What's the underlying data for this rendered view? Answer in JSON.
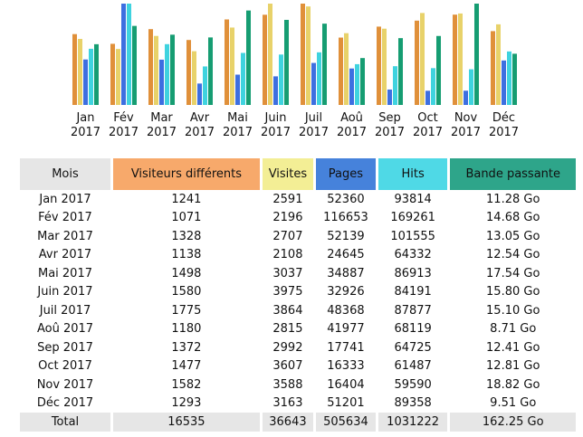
{
  "colors": {
    "visitors": "#e0903a",
    "visits": "#e8d26a",
    "pages": "#3d6fe0",
    "hits": "#3fd3df",
    "bandwidth": "#169d72",
    "header_month": "#e6e6e6",
    "header_visitors": "#f7a96b",
    "header_visits": "#f3ee95",
    "header_pages": "#4682db",
    "header_hits": "#4fd9e6",
    "header_bandwidth": "#2ea58a",
    "total_row": "#e6e6e6"
  },
  "chart_data": {
    "type": "bar",
    "categories": [
      "Jan",
      "Fév",
      "Mar",
      "Avr",
      "Mai",
      "Juin",
      "Juil",
      "Aoû",
      "Sep",
      "Oct",
      "Nov",
      "Déc"
    ],
    "year": "2017",
    "series": [
      {
        "name": "Visiteurs différents",
        "values": [
          1241,
          1071,
          1328,
          1138,
          1498,
          1580,
          1775,
          1180,
          1372,
          1477,
          1582,
          1293
        ]
      },
      {
        "name": "Visites",
        "values": [
          2591,
          2196,
          2707,
          2108,
          3037,
          3975,
          3864,
          2815,
          2992,
          3607,
          3588,
          3163
        ]
      },
      {
        "name": "Pages",
        "values": [
          52360,
          116653,
          52139,
          24645,
          34887,
          32926,
          48368,
          41977,
          17741,
          16333,
          16404,
          51201
        ]
      },
      {
        "name": "Hits",
        "values": [
          93814,
          169261,
          101555,
          64332,
          86913,
          84191,
          87877,
          68119,
          64725,
          61487,
          59590,
          89358
        ]
      },
      {
        "name": "Bande passante",
        "values": [
          11.28,
          14.68,
          13.05,
          12.54,
          17.54,
          15.8,
          15.1,
          8.71,
          12.41,
          12.81,
          18.82,
          9.51
        ]
      }
    ]
  },
  "table": {
    "headers": {
      "month": "Mois",
      "visitors": "Visiteurs différents",
      "visits": "Visites",
      "pages": "Pages",
      "hits": "Hits",
      "bandwidth": "Bande passante"
    },
    "rows": [
      {
        "month": "Jan 2017",
        "visitors": "1241",
        "visits": "2591",
        "pages": "52360",
        "hits": "93814",
        "bandwidth": "11.28 Go"
      },
      {
        "month": "Fév 2017",
        "visitors": "1071",
        "visits": "2196",
        "pages": "116653",
        "hits": "169261",
        "bandwidth": "14.68 Go"
      },
      {
        "month": "Mar 2017",
        "visitors": "1328",
        "visits": "2707",
        "pages": "52139",
        "hits": "101555",
        "bandwidth": "13.05 Go"
      },
      {
        "month": "Avr 2017",
        "visitors": "1138",
        "visits": "2108",
        "pages": "24645",
        "hits": "64332",
        "bandwidth": "12.54 Go"
      },
      {
        "month": "Mai 2017",
        "visitors": "1498",
        "visits": "3037",
        "pages": "34887",
        "hits": "86913",
        "bandwidth": "17.54 Go"
      },
      {
        "month": "Juin 2017",
        "visitors": "1580",
        "visits": "3975",
        "pages": "32926",
        "hits": "84191",
        "bandwidth": "15.80 Go"
      },
      {
        "month": "Juil 2017",
        "visitors": "1775",
        "visits": "3864",
        "pages": "48368",
        "hits": "87877",
        "bandwidth": "15.10 Go"
      },
      {
        "month": "Aoû 2017",
        "visitors": "1180",
        "visits": "2815",
        "pages": "41977",
        "hits": "68119",
        "bandwidth": "8.71 Go"
      },
      {
        "month": "Sep 2017",
        "visitors": "1372",
        "visits": "2992",
        "pages": "17741",
        "hits": "64725",
        "bandwidth": "12.41 Go"
      },
      {
        "month": "Oct 2017",
        "visitors": "1477",
        "visits": "3607",
        "pages": "16333",
        "hits": "61487",
        "bandwidth": "12.81 Go"
      },
      {
        "month": "Nov 2017",
        "visitors": "1582",
        "visits": "3588",
        "pages": "16404",
        "hits": "59590",
        "bandwidth": "18.82 Go"
      },
      {
        "month": "Déc 2017",
        "visitors": "1293",
        "visits": "3163",
        "pages": "51201",
        "hits": "89358",
        "bandwidth": "9.51 Go"
      }
    ],
    "total": {
      "month": "Total",
      "visitors": "16535",
      "visits": "36643",
      "pages": "505634",
      "hits": "1031222",
      "bandwidth": "162.25 Go"
    }
  }
}
